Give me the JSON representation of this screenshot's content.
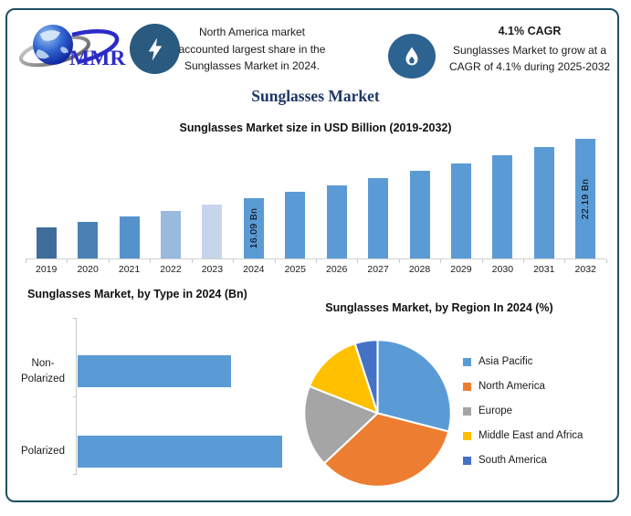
{
  "header": {
    "logo_text": "MMR",
    "left_note": "North America market accounted largest share in the Sunglasses Market in 2024.",
    "cagr_title": "4.1% CAGR",
    "cagr_note": "Sunglasses Market to grow at a CAGR of 4.1% during 2025-2032"
  },
  "title": "Sunglasses Market",
  "colors": {
    "frame_border": "#1E4F63",
    "main_title": "#1F3864",
    "bolt_badge": "#2A5A7F",
    "flame_badge": "#2D6391",
    "axis_gray": "#C9C9C9",
    "primary_bar_blue": "#5B9BD5"
  },
  "chart_data": [
    {
      "id": "market_size",
      "type": "bar",
      "title": "Sunglasses Market size in USD Billion (2019-2032)",
      "categories": [
        "2019",
        "2020",
        "2021",
        "2022",
        "2023",
        "2024",
        "2025",
        "2026",
        "2027",
        "2028",
        "2029",
        "2030",
        "2031",
        "2032"
      ],
      "values": [
        13.16,
        13.7,
        14.26,
        14.85,
        15.46,
        16.09,
        16.75,
        17.44,
        18.15,
        18.9,
        19.67,
        20.48,
        21.32,
        22.19
      ],
      "unit": "USD Billion",
      "ylim": [
        10,
        23
      ],
      "grid": false,
      "bar_colors": [
        "#3E6D99",
        "#4A81B4",
        "#5592CC",
        "#9AB9DF",
        "#C6D5EC",
        "#5B9BD5",
        "#5B9BD5",
        "#5B9BD5",
        "#5B9BD5",
        "#5B9BD5",
        "#5B9BD5",
        "#5B9BD5",
        "#5B9BD5",
        "#5B9BD5"
      ],
      "bar_labels": {
        "2024": "16.09 Bn",
        "2032": "22.19 Bn"
      }
    },
    {
      "id": "by_type",
      "type": "bar",
      "orientation": "horizontal",
      "title": "Sunglasses Market, by Type in 2024 (Bn)",
      "categories": [
        "Non-Polarized",
        "Polarized"
      ],
      "values": [
        6.89,
        9.2
      ],
      "unit": "Bn",
      "xlim": [
        0,
        10
      ],
      "grid": false,
      "bar_color": "#5B9BD5"
    },
    {
      "id": "by_region",
      "type": "pie",
      "title": "Sunglasses Market, by Region In 2024 (%)",
      "unit": "%",
      "legend_position": "right",
      "slices": [
        {
          "label": "Asia Pacific",
          "value": 29,
          "color": "#5B9BD5"
        },
        {
          "label": "North America",
          "value": 34,
          "color": "#ED7D31"
        },
        {
          "label": "Europe",
          "value": 18,
          "color": "#A5A5A5"
        },
        {
          "label": "Middle East and Africa",
          "value": 14,
          "color": "#FFC000"
        },
        {
          "label": "South America",
          "value": 5,
          "color": "#4472C4"
        }
      ]
    }
  ]
}
